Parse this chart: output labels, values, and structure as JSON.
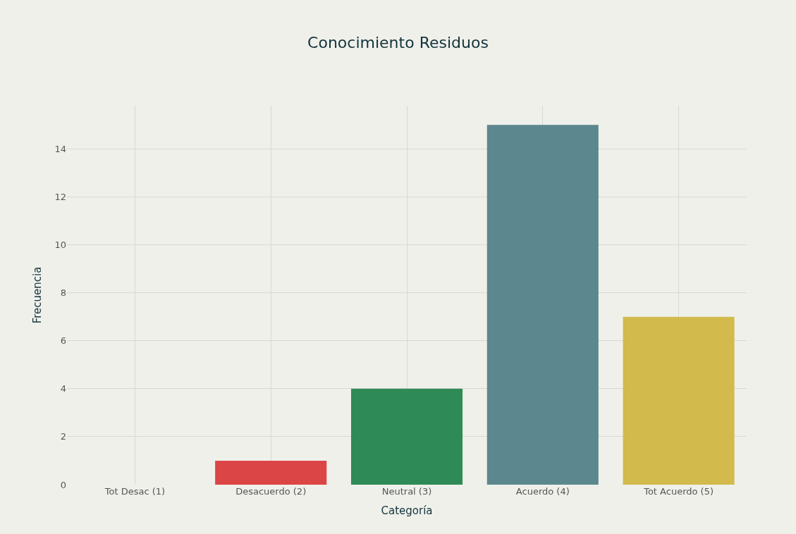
{
  "chart_data": {
    "type": "bar",
    "title": "Conocimiento Residuos",
    "xlabel": "Categoría",
    "ylabel": "Frecuencia",
    "categories": [
      "Tot Desac (1)",
      "Desacuerdo (2)",
      "Neutral (3)",
      "Acuerdo (4)",
      "Tot Acuerdo (5)"
    ],
    "values": [
      0,
      1,
      4,
      15,
      7
    ],
    "colors": [
      "#1fb8cd",
      "#db4545",
      "#2e8b57",
      "#5d878f",
      "#d2ba4c"
    ],
    "ylim": [
      0,
      15.8
    ],
    "yticks": [
      0,
      2,
      4,
      6,
      8,
      10,
      12,
      14
    ],
    "grid": true
  }
}
